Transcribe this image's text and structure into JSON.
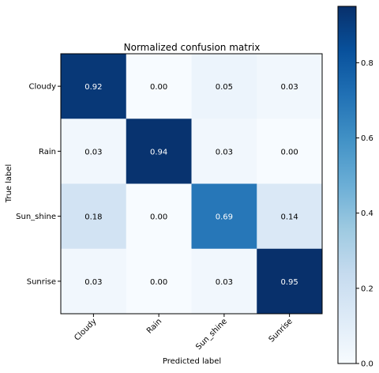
{
  "chart_data": {
    "type": "heatmap",
    "title": "Normalized confusion matrix",
    "xlabel": "Predicted label",
    "ylabel": "True label",
    "x_categories": [
      "Cloudy",
      "Rain",
      "Sun_shine",
      "Sunrise"
    ],
    "y_categories": [
      "Cloudy",
      "Rain",
      "Sun_shine",
      "Sunrise"
    ],
    "values": [
      [
        0.92,
        0.0,
        0.05,
        0.03
      ],
      [
        0.03,
        0.94,
        0.03,
        0.0
      ],
      [
        0.18,
        0.0,
        0.69,
        0.14
      ],
      [
        0.03,
        0.0,
        0.03,
        0.95
      ]
    ],
    "colormap": "Blues",
    "colorbar": {
      "range": [
        0.0,
        0.95
      ],
      "ticks": [
        0.0,
        0.2,
        0.4,
        0.6,
        0.8
      ],
      "tick_labels": [
        "0.0",
        "0.2",
        "0.4",
        "0.6",
        "0.8"
      ]
    },
    "grid": false
  }
}
